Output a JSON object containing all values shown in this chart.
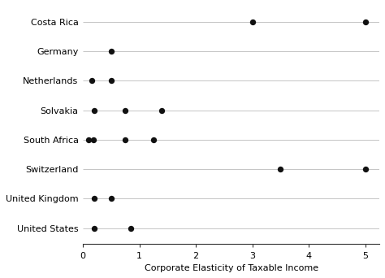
{
  "countries": [
    "Costa Rica",
    "Germany",
    "Netherlands",
    "Solvakia",
    "South Africa",
    "Switzerland",
    "United Kingdom",
    "United States"
  ],
  "points": {
    "Costa Rica": [
      3.0,
      5.0
    ],
    "Germany": [
      0.5
    ],
    "Netherlands": [
      0.15,
      0.5
    ],
    "Solvakia": [
      0.2,
      0.75,
      1.4
    ],
    "South Africa": [
      0.1,
      0.18,
      0.75,
      1.25
    ],
    "Switzerland": [
      3.5,
      5.0
    ],
    "United Kingdom": [
      0.2,
      0.5
    ],
    "United States": [
      0.2,
      0.85
    ]
  },
  "xlabel": "Corporate Elasticity of Taxable Income",
  "xlim": [
    0,
    5.25
  ],
  "xticks": [
    0,
    1,
    2,
    3,
    4,
    5
  ],
  "dot_color": "#111111",
  "dot_size": 28,
  "background_color": "#ffffff",
  "line_color": "#bbbbbb",
  "line_width": 0.6,
  "font_size": 8.0,
  "xlabel_size": 8.0
}
